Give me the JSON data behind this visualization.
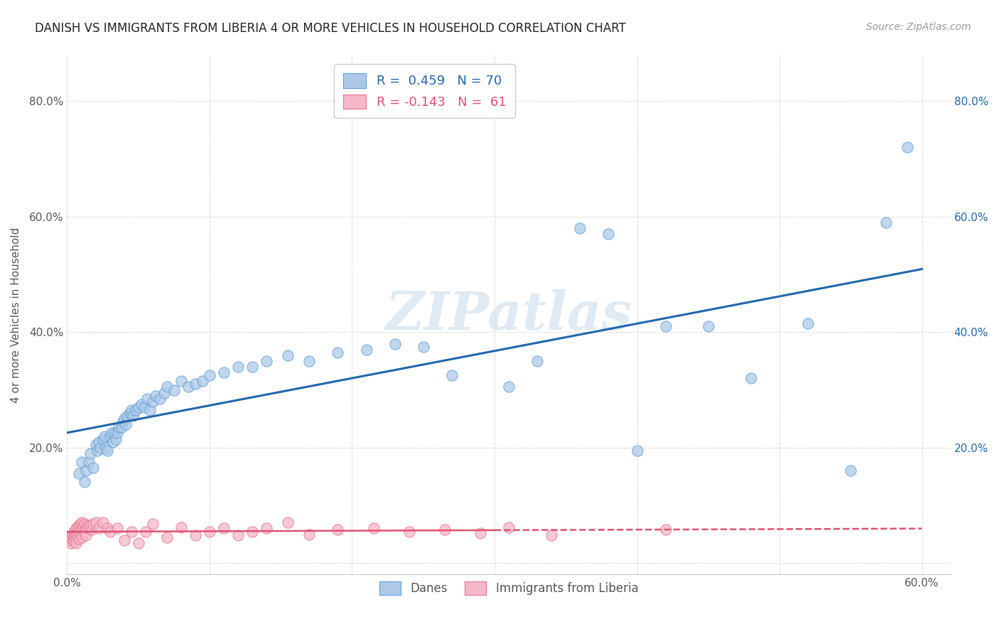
{
  "title": "DANISH VS IMMIGRANTS FROM LIBERIA 4 OR MORE VEHICLES IN HOUSEHOLD CORRELATION CHART",
  "source": "Source: ZipAtlas.com",
  "ylabel": "4 or more Vehicles in Household",
  "xlim": [
    0.0,
    0.62
  ],
  "ylim": [
    -0.02,
    0.88
  ],
  "xtick_positions": [
    0.0,
    0.6
  ],
  "xtick_labels": [
    "0.0%",
    "60.0%"
  ],
  "ytick_positions": [
    0.0,
    0.2,
    0.4,
    0.6,
    0.8
  ],
  "ytick_labels": [
    "",
    "20.0%",
    "40.0%",
    "60.0%",
    "80.0%"
  ],
  "blue_fill": "#aec9e8",
  "pink_fill": "#f5b8c8",
  "blue_edge": "#5a9fd4",
  "pink_edge": "#e87090",
  "blue_line": "#2166ac",
  "pink_line": "#e05070",
  "watermark": "ZIPatlas",
  "legend_blue_label": "R =  0.459   N = 70",
  "legend_pink_label": "R = -0.143   N =  61",
  "legend_danes": "Danes",
  "legend_liberia": "Immigrants from Liberia",
  "danes_x": [
    0.008,
    0.01,
    0.012,
    0.013,
    0.015,
    0.016,
    0.018,
    0.02,
    0.021,
    0.022,
    0.023,
    0.025,
    0.026,
    0.027,
    0.028,
    0.03,
    0.031,
    0.032,
    0.033,
    0.034,
    0.035,
    0.036,
    0.038,
    0.039,
    0.04,
    0.041,
    0.042,
    0.044,
    0.045,
    0.046,
    0.048,
    0.05,
    0.052,
    0.054,
    0.056,
    0.058,
    0.06,
    0.062,
    0.065,
    0.068,
    0.07,
    0.075,
    0.08,
    0.085,
    0.09,
    0.095,
    0.1,
    0.11,
    0.12,
    0.13,
    0.14,
    0.155,
    0.17,
    0.19,
    0.21,
    0.23,
    0.25,
    0.27,
    0.31,
    0.33,
    0.36,
    0.38,
    0.4,
    0.42,
    0.45,
    0.48,
    0.52,
    0.55,
    0.575,
    0.59
  ],
  "danes_y": [
    0.155,
    0.175,
    0.14,
    0.16,
    0.175,
    0.19,
    0.165,
    0.205,
    0.195,
    0.21,
    0.2,
    0.215,
    0.22,
    0.2,
    0.195,
    0.22,
    0.225,
    0.21,
    0.225,
    0.215,
    0.225,
    0.235,
    0.235,
    0.245,
    0.25,
    0.24,
    0.255,
    0.26,
    0.265,
    0.255,
    0.265,
    0.27,
    0.275,
    0.27,
    0.285,
    0.265,
    0.28,
    0.29,
    0.285,
    0.295,
    0.305,
    0.3,
    0.315,
    0.305,
    0.31,
    0.315,
    0.325,
    0.33,
    0.34,
    0.34,
    0.35,
    0.36,
    0.35,
    0.365,
    0.37,
    0.38,
    0.375,
    0.325,
    0.305,
    0.35,
    0.58,
    0.57,
    0.195,
    0.41,
    0.41,
    0.32,
    0.415,
    0.16,
    0.59,
    0.72
  ],
  "liberia_x": [
    0.002,
    0.003,
    0.003,
    0.004,
    0.004,
    0.005,
    0.005,
    0.005,
    0.006,
    0.006,
    0.006,
    0.006,
    0.007,
    0.007,
    0.008,
    0.008,
    0.008,
    0.009,
    0.009,
    0.01,
    0.01,
    0.01,
    0.011,
    0.012,
    0.012,
    0.013,
    0.013,
    0.014,
    0.015,
    0.016,
    0.017,
    0.018,
    0.02,
    0.022,
    0.025,
    0.028,
    0.03,
    0.035,
    0.04,
    0.045,
    0.05,
    0.055,
    0.06,
    0.07,
    0.08,
    0.09,
    0.1,
    0.11,
    0.12,
    0.13,
    0.14,
    0.155,
    0.17,
    0.19,
    0.215,
    0.24,
    0.265,
    0.29,
    0.31,
    0.34,
    0.42
  ],
  "liberia_y": [
    0.04,
    0.035,
    0.045,
    0.05,
    0.04,
    0.055,
    0.045,
    0.038,
    0.06,
    0.05,
    0.042,
    0.035,
    0.06,
    0.05,
    0.065,
    0.055,
    0.042,
    0.068,
    0.052,
    0.07,
    0.058,
    0.045,
    0.065,
    0.068,
    0.055,
    0.06,
    0.048,
    0.065,
    0.06,
    0.065,
    0.058,
    0.068,
    0.07,
    0.06,
    0.07,
    0.06,
    0.055,
    0.06,
    0.04,
    0.055,
    0.035,
    0.055,
    0.068,
    0.045,
    0.062,
    0.048,
    0.055,
    0.06,
    0.048,
    0.055,
    0.06,
    0.07,
    0.05,
    0.058,
    0.06,
    0.055,
    0.058,
    0.052,
    0.062,
    0.048,
    0.058
  ],
  "background_color": "#ffffff",
  "grid_color": "#dddddd"
}
